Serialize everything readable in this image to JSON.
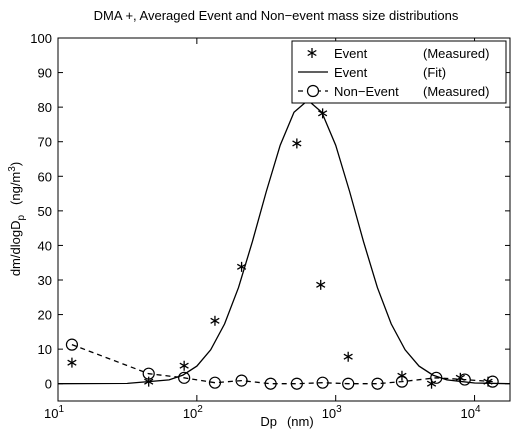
{
  "chart_data": {
    "type": "scatter",
    "title": "DMA +,   Averaged Event and Non−event mass size distributions",
    "xlabel": {
      "main": "Dp",
      "unit": "(nm)"
    },
    "ylabel": {
      "main": "dm/dlogD",
      "sub": "p",
      "unit": "(ng/m",
      "sup": "3",
      "close": ")"
    },
    "log_x": true,
    "xlim": [
      10,
      18000
    ],
    "ylim": [
      -5,
      100
    ],
    "xticks": [
      {
        "value": 10,
        "label": "10",
        "exponent": "1"
      },
      {
        "value": 100,
        "label": "10",
        "exponent": "2"
      },
      {
        "value": 1000,
        "label": "10",
        "exponent": "3"
      },
      {
        "value": 10000,
        "label": "10",
        "exponent": "4"
      }
    ],
    "yticks": [
      0,
      10,
      20,
      30,
      40,
      50,
      60,
      70,
      80,
      90,
      100
    ],
    "legend": "upper right",
    "series": [
      {
        "name": "Event",
        "legend_note": "(Measured)",
        "style": "asterisk",
        "color": "#000000",
        "x": [
          12.6,
          45,
          81,
          135,
          210,
          525,
          805,
          780,
          1230,
          3000,
          4900,
          7900,
          12500
        ],
        "values": [
          6.1,
          0.6,
          5.2,
          18.2,
          33.8,
          69.5,
          78.2,
          28.6,
          7.8,
          2.3,
          0,
          1.7,
          0.6
        ]
      },
      {
        "name": "Event",
        "legend_note": "(Fit)",
        "style": "line",
        "color": "#000000",
        "x": [
          10,
          31.6,
          63.1,
          79.4,
          100,
          125.9,
          158.5,
          199.5,
          251.2,
          316.2,
          398.1,
          501.2,
          631,
          794.3,
          1000,
          1258.9,
          1584.9,
          1995.3,
          2511.9,
          3162.3,
          3981.1,
          5011.9,
          6309.6,
          10000,
          18000
        ],
        "values": [
          0,
          0.1,
          1.1,
          2.5,
          5.1,
          9.8,
          17.3,
          27.8,
          41.1,
          55.6,
          69,
          78.5,
          82,
          78.5,
          69,
          55.6,
          41.1,
          27.8,
          17.3,
          9.8,
          5.1,
          2.5,
          1.1,
          0.2,
          0
        ]
      },
      {
        "name": "Non−Event",
        "legend_note": "(Measured)",
        "style": "dashed-circle",
        "color": "#000000",
        "x": [
          12.6,
          45,
          81,
          135,
          210,
          340,
          525,
          805,
          1230,
          2000,
          3000,
          5300,
          8500,
          13500
        ],
        "values": [
          11.3,
          2.9,
          1.7,
          0.3,
          0.9,
          0,
          0,
          0.3,
          0,
          0,
          0.6,
          1.7,
          1.2,
          0.6
        ]
      }
    ]
  }
}
